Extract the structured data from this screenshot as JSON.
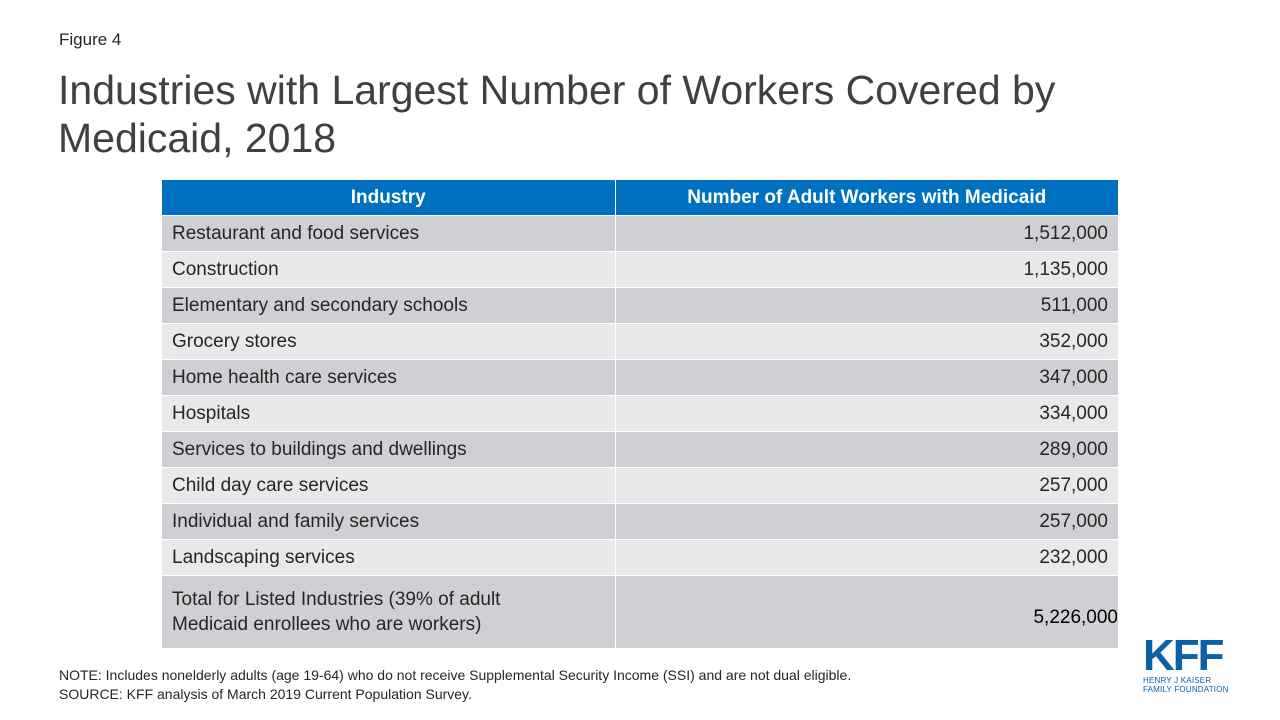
{
  "figure_label": "Figure 4",
  "title": "Industries with Largest Number of Workers Covered by Medicaid, 2018",
  "chart_data": {
    "type": "table",
    "columns": [
      "Industry",
      "Number of Adult Workers with Medicaid"
    ],
    "rows": [
      {
        "industry": "Restaurant and food services",
        "value": "1,512,000"
      },
      {
        "industry": "Construction",
        "value": "1,135,000"
      },
      {
        "industry": "Elementary and secondary schools",
        "value": "511,000"
      },
      {
        "industry": "Grocery stores",
        "value": "352,000"
      },
      {
        "industry": "Home health care services",
        "value": "347,000"
      },
      {
        "industry": "Hospitals",
        "value": "334,000"
      },
      {
        "industry": "Services to buildings and dwellings",
        "value": "289,000"
      },
      {
        "industry": "Child day care services",
        "value": "257,000"
      },
      {
        "industry": "Individual and family services",
        "value": "257,000"
      },
      {
        "industry": "Landscaping services",
        "value": "232,000"
      }
    ],
    "total": {
      "label_line1": "Total for Listed Industries (39% of adult",
      "label_line2": "Medicaid enrollees who are workers)",
      "value": "5,226,000"
    }
  },
  "notes": {
    "note": "NOTE: Includes nonelderly adults (age 19-64) who do not receive Supplemental Security Income (SSI) and are not dual eligible.",
    "source": "SOURCE: KFF analysis of March 2019 Current Population Survey."
  },
  "logo": {
    "mark": "KFF",
    "line1": "HENRY J KAISER",
    "line2": "FAMILY FOUNDATION"
  },
  "colors": {
    "header_bg": "#0070c0",
    "row_dark": "#cfd0d3",
    "row_light": "#e8e9eb",
    "logo": "#0b61a4"
  }
}
